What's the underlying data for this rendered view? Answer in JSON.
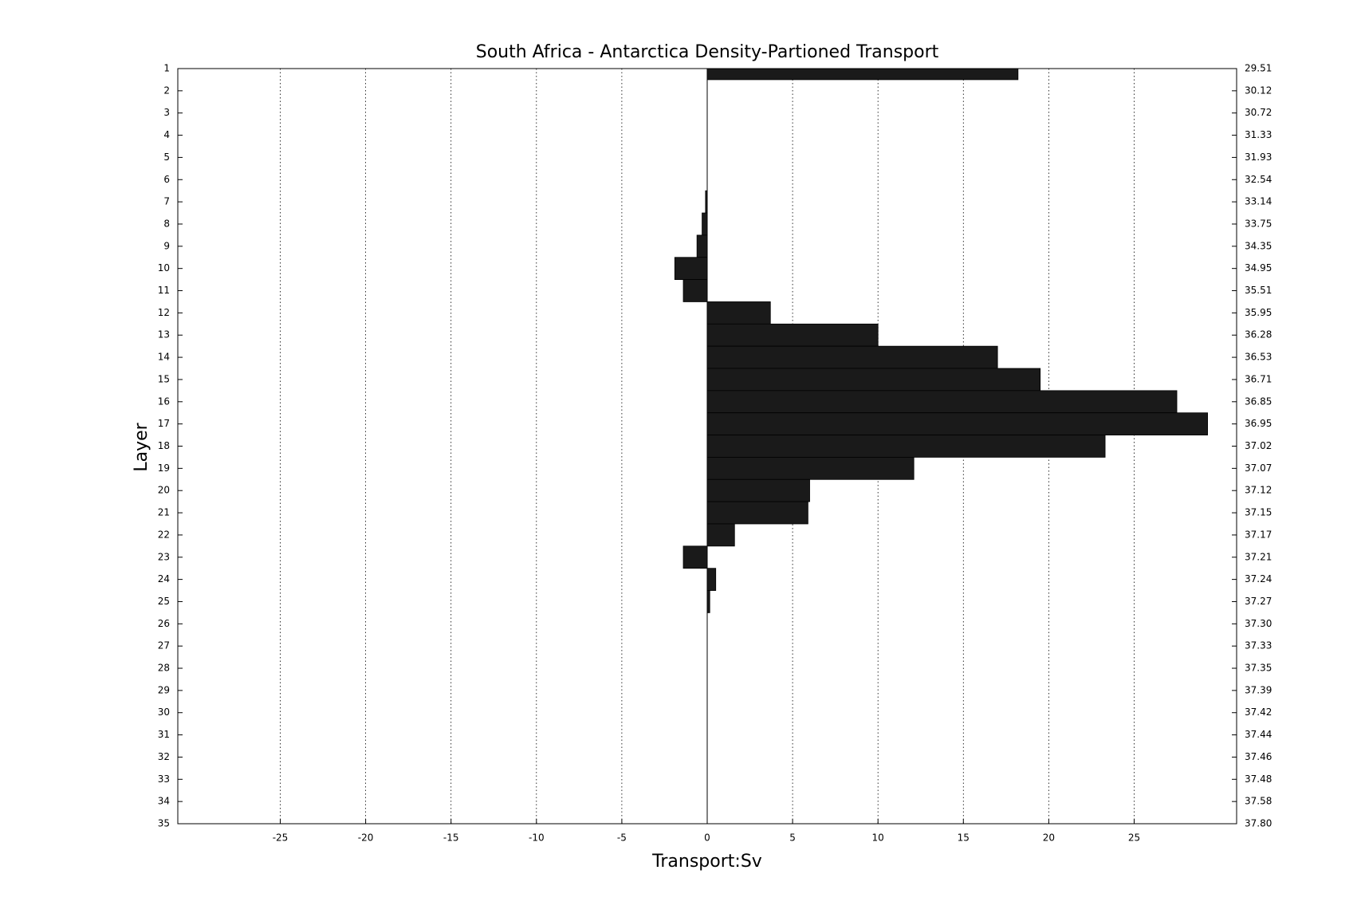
{
  "chart_data": {
    "type": "bar",
    "orientation": "horizontal",
    "title": "South Africa - Antarctica Density-Partioned Transport",
    "xlabel": "Transport:Sv",
    "ylabel": "Layer",
    "color": "#1a1a1a",
    "xlim": [
      -31,
      31
    ],
    "xticks": [
      -25,
      -20,
      -15,
      -10,
      -5,
      0,
      5,
      10,
      15,
      20,
      25
    ],
    "ylim": [
      1,
      35
    ],
    "yticks": [
      1,
      2,
      3,
      4,
      5,
      6,
      7,
      8,
      9,
      10,
      11,
      12,
      13,
      14,
      15,
      16,
      17,
      18,
      19,
      20,
      21,
      22,
      23,
      24,
      25,
      26,
      27,
      28,
      29,
      30,
      31,
      32,
      33,
      34,
      35
    ],
    "y2lim": [
      1,
      35
    ],
    "y2ticks": [
      {
        "value": 1,
        "label": "29.51"
      },
      {
        "value": 2,
        "label": "30.12"
      },
      {
        "value": 3,
        "label": "30.72"
      },
      {
        "value": 4,
        "label": "31.33"
      },
      {
        "value": 5,
        "label": "31.93"
      },
      {
        "value": 6,
        "label": "32.54"
      },
      {
        "value": 7,
        "label": "33.14"
      },
      {
        "value": 8,
        "label": "33.75"
      },
      {
        "value": 9,
        "label": "34.35"
      },
      {
        "value": 10,
        "label": "34.95"
      },
      {
        "value": 11,
        "label": "35.51"
      },
      {
        "value": 12,
        "label": "35.95"
      },
      {
        "value": 13,
        "label": "36.28"
      },
      {
        "value": 14,
        "label": "36.53"
      },
      {
        "value": 15,
        "label": "36.71"
      },
      {
        "value": 16,
        "label": "36.85"
      },
      {
        "value": 17,
        "label": "36.95"
      },
      {
        "value": 18,
        "label": "37.02"
      },
      {
        "value": 19,
        "label": "37.07"
      },
      {
        "value": 20,
        "label": "37.12"
      },
      {
        "value": 21,
        "label": "37.15"
      },
      {
        "value": 22,
        "label": "37.17"
      },
      {
        "value": 23,
        "label": "37.21"
      },
      {
        "value": 24,
        "label": "37.24"
      },
      {
        "value": 25,
        "label": "37.27"
      },
      {
        "value": 26,
        "label": "37.30"
      },
      {
        "value": 27,
        "label": "37.33"
      },
      {
        "value": 28,
        "label": "37.35"
      },
      {
        "value": 29,
        "label": "37.39"
      },
      {
        "value": 30,
        "label": "37.42"
      },
      {
        "value": 31,
        "label": "37.44"
      },
      {
        "value": 32,
        "label": "37.46"
      },
      {
        "value": 33,
        "label": "37.48"
      },
      {
        "value": 34,
        "label": "37.58"
      },
      {
        "value": 35,
        "label": "37.80"
      }
    ],
    "values": [
      18.2,
      0,
      0,
      0,
      0,
      0,
      -0.1,
      -0.3,
      -0.6,
      -1.9,
      -1.4,
      3.7,
      10.0,
      17.0,
      19.5,
      27.5,
      29.3,
      23.3,
      12.1,
      6.0,
      5.9,
      1.6,
      -1.4,
      0.5,
      0.15,
      0,
      0,
      0,
      0,
      0,
      0,
      0,
      0,
      0,
      0
    ],
    "grid": true
  }
}
